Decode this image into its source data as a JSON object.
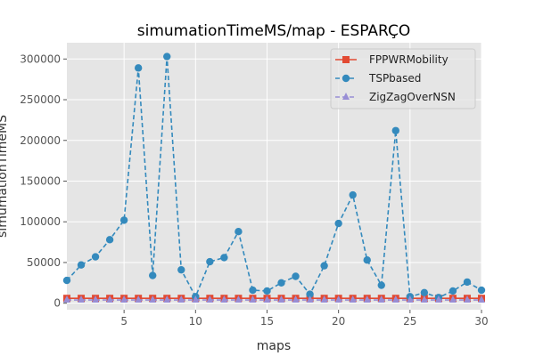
{
  "chart_data": {
    "type": "line",
    "title": "simumationTimeMS/map - ESPARÇO",
    "xlabel": "maps",
    "ylabel": "simumationTimeMS",
    "xlim": [
      1,
      30
    ],
    "ylim": [
      -8000,
      320000
    ],
    "xticks": [
      5,
      10,
      15,
      20,
      25,
      30
    ],
    "yticks": [
      0,
      50000,
      100000,
      150000,
      200000,
      250000,
      300000
    ],
    "grid": true,
    "legend_position": "top-right",
    "x": [
      1,
      2,
      3,
      4,
      5,
      6,
      7,
      8,
      9,
      10,
      11,
      12,
      13,
      14,
      15,
      16,
      17,
      18,
      19,
      20,
      21,
      22,
      23,
      24,
      25,
      26,
      27,
      28,
      29,
      30
    ],
    "series": [
      {
        "name": "FPPWRMobility",
        "color": "#e24a33",
        "marker": "square",
        "linestyle": "solid",
        "values": [
          6000,
          6000,
          6000,
          6000,
          6000,
          6000,
          6000,
          6000,
          6000,
          6000,
          6000,
          6000,
          6000,
          6000,
          6000,
          6000,
          6000,
          6000,
          6000,
          6000,
          6000,
          6000,
          6000,
          6000,
          6000,
          6000,
          6000,
          6000,
          6000,
          6000
        ]
      },
      {
        "name": "TSPbased",
        "color": "#348abd",
        "marker": "circle",
        "linestyle": "dashed",
        "values": [
          28000,
          47000,
          57000,
          78000,
          102000,
          289000,
          34000,
          303000,
          41000,
          8000,
          51000,
          56000,
          88000,
          16000,
          15000,
          25000,
          33000,
          11000,
          46000,
          98000,
          133000,
          53000,
          22000,
          212000,
          8000,
          13000,
          7000,
          15000,
          26000,
          16000
        ]
      },
      {
        "name": "ZigZagOverNSN",
        "color": "#988ed5",
        "marker": "triangle",
        "linestyle": "dashed",
        "values": [
          4000,
          4000,
          4000,
          4000,
          4000,
          4000,
          4000,
          4000,
          4000,
          4000,
          4000,
          4000,
          4000,
          4000,
          4000,
          4000,
          4000,
          4000,
          4000,
          4000,
          4000,
          4000,
          4000,
          4000,
          4000,
          4000,
          4000,
          4000,
          4000,
          4000
        ]
      }
    ]
  }
}
